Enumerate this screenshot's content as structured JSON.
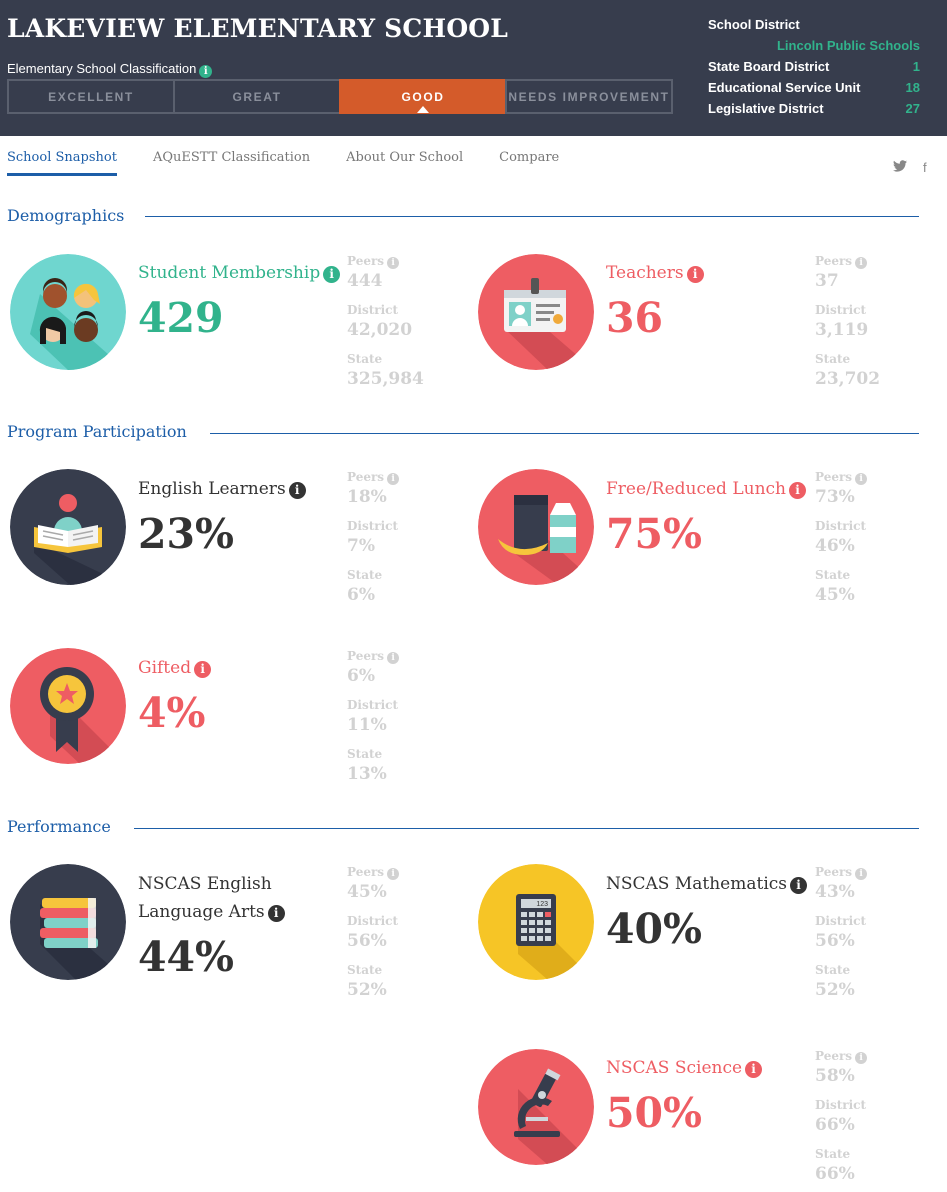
{
  "header": {
    "school_name": "LAKEVIEW ELEMENTARY SCHOOL",
    "classification_label": "Elementary School Classification",
    "info_glyph": "i",
    "ratings": [
      "EXCELLENT",
      "GREAT",
      "GOOD",
      "NEEDS IMPROVEMENT"
    ],
    "active_rating": "GOOD",
    "district_info": {
      "school_district_label": "School District",
      "school_district_value": "Lincoln Public Schools",
      "state_board_label": "State Board District",
      "state_board_value": "1",
      "esu_label": "Educational Service Unit",
      "esu_value": "18",
      "legislative_label": "Legislative District",
      "legislative_value": "27"
    }
  },
  "tabs": [
    "School Snapshot",
    "AQuESTT Classification",
    "About Our School",
    "Compare"
  ],
  "social": {
    "twitter": "twitter-icon",
    "facebook_glyph": "f"
  },
  "sections": {
    "demographics": "Demographics",
    "program": "Program Participation",
    "performance": "Performance"
  },
  "compare_labels": {
    "peers": "Peers",
    "district": "District",
    "state": "State"
  },
  "stats": {
    "membership": {
      "label": "Student Membership",
      "value": "429",
      "peers": "444",
      "district": "42,020",
      "state": "325,984",
      "icon": "students-icon"
    },
    "teachers": {
      "label": "Teachers",
      "value": "36",
      "peers": "37",
      "district": "3,119",
      "state": "23,702",
      "icon": "id-badge-icon"
    },
    "ell": {
      "label": "English Learners",
      "value": "23%",
      "peers": "18%",
      "district": "7%",
      "state": "6%",
      "icon": "reader-book-icon"
    },
    "frl": {
      "label": "Free/Reduced Lunch",
      "value": "75%",
      "peers": "73%",
      "district": "46%",
      "state": "45%",
      "icon": "lunch-icon"
    },
    "gifted": {
      "label": "Gifted",
      "value": "4%",
      "peers": "6%",
      "district": "11%",
      "state": "13%",
      "icon": "award-ribbon-icon"
    },
    "ela": {
      "label_line1": "NSCAS English",
      "label_line2": "Language Arts",
      "value": "44%",
      "peers": "45%",
      "district": "56%",
      "state": "52%",
      "icon": "books-icon"
    },
    "math": {
      "label": "NSCAS Mathematics",
      "value": "40%",
      "peers": "43%",
      "district": "56%",
      "state": "52%",
      "icon": "calculator-icon",
      "calc_display": "123"
    },
    "science": {
      "label": "NSCAS Science",
      "value": "50%",
      "peers": "58%",
      "district": "66%",
      "state": "66%",
      "icon": "microscope-icon"
    }
  },
  "colors": {
    "header_bg": "#373d4d",
    "accent_teal": "#31b38c",
    "accent_red": "#ee5d63",
    "active_rating": "#d45b2a",
    "link_blue": "#1d5ea8",
    "muted": "#d2d2d2"
  }
}
